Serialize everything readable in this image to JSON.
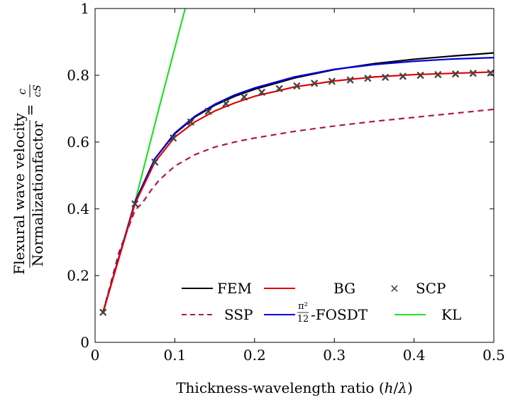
{
  "chart_data": {
    "type": "line",
    "xlabel": "Thickness-wavelength ratio (h/λ)",
    "ylabel": {
      "numerator": "Flexural wave velocity",
      "denominator": "Normalizationfactor",
      "rhs_equals": "=",
      "rhs_num": "c",
      "rhs_den": "cS"
    },
    "xlim": [
      0,
      0.5
    ],
    "ylim": [
      0,
      1
    ],
    "xticks": [
      0,
      0.1,
      0.2,
      0.3,
      0.4,
      0.5
    ],
    "yticks": [
      0,
      0.2,
      0.4,
      0.6,
      0.8,
      1
    ],
    "xtick_labels": [
      "0",
      "0.1",
      "0.2",
      "0.3",
      "0.4",
      "0.5"
    ],
    "ytick_labels": [
      "0",
      "0.2",
      "0.4",
      "0.6",
      "0.8",
      "1"
    ],
    "grid": false,
    "legend_position": "bottom-right",
    "series": [
      {
        "name": "FEM",
        "color": "#000000",
        "style": "solid",
        "x": [
          0.01,
          0.05,
          0.075,
          0.1,
          0.125,
          0.15,
          0.175,
          0.2,
          0.25,
          0.3,
          0.35,
          0.4,
          0.45,
          0.5
        ],
        "y": [
          0.09,
          0.42,
          0.55,
          0.625,
          0.675,
          0.71,
          0.737,
          0.758,
          0.792,
          0.817,
          0.835,
          0.848,
          0.858,
          0.867
        ]
      },
      {
        "name": "BG",
        "color": "#e00000",
        "style": "solid",
        "x": [
          0.01,
          0.05,
          0.075,
          0.1,
          0.125,
          0.15,
          0.175,
          0.2,
          0.25,
          0.3,
          0.35,
          0.4,
          0.45,
          0.5
        ],
        "y": [
          0.09,
          0.415,
          0.54,
          0.615,
          0.66,
          0.693,
          0.717,
          0.737,
          0.765,
          0.783,
          0.795,
          0.802,
          0.806,
          0.81
        ]
      },
      {
        "name": "SCP",
        "color": "#444444",
        "style": "marker",
        "x": [
          0.01,
          0.05,
          0.075,
          0.098,
          0.12,
          0.142,
          0.164,
          0.187,
          0.209,
          0.231,
          0.253,
          0.275,
          0.297,
          0.32,
          0.342,
          0.364,
          0.386,
          0.408,
          0.43,
          0.452,
          0.474,
          0.496
        ],
        "y": [
          0.09,
          0.415,
          0.54,
          0.612,
          0.66,
          0.692,
          0.715,
          0.735,
          0.749,
          0.76,
          0.768,
          0.776,
          0.782,
          0.786,
          0.791,
          0.794,
          0.797,
          0.8,
          0.802,
          0.804,
          0.806,
          0.807
        ]
      },
      {
        "name": "SSP",
        "color": "#b0184c",
        "style": "dashed",
        "x": [
          0.01,
          0.03,
          0.05,
          0.06,
          0.07,
          0.08,
          0.1,
          0.125,
          0.15,
          0.175,
          0.2,
          0.25,
          0.3,
          0.35,
          0.4,
          0.45,
          0.5
        ],
        "y": [
          0.09,
          0.27,
          0.395,
          0.42,
          0.455,
          0.485,
          0.528,
          0.562,
          0.585,
          0.6,
          0.612,
          0.632,
          0.648,
          0.662,
          0.674,
          0.686,
          0.698
        ]
      },
      {
        "name": "π²/12-FOSDT",
        "color": "#0000e0",
        "style": "solid",
        "x": [
          0.01,
          0.05,
          0.075,
          0.1,
          0.125,
          0.15,
          0.175,
          0.2,
          0.25,
          0.3,
          0.35,
          0.4,
          0.45,
          0.5
        ],
        "y": [
          0.09,
          0.42,
          0.55,
          0.627,
          0.677,
          0.713,
          0.741,
          0.762,
          0.795,
          0.818,
          0.832,
          0.842,
          0.849,
          0.853
        ]
      },
      {
        "name": "KL",
        "color": "#22e022",
        "style": "solid",
        "x": [
          0.01,
          0.05,
          0.08,
          0.113
        ],
        "y": [
          0.09,
          0.42,
          0.7,
          1.0
        ]
      }
    ]
  },
  "legend": {
    "fosdt_frac_num": "π²",
    "fosdt_frac_den": "12",
    "fosdt_suffix": "-FOSDT"
  }
}
